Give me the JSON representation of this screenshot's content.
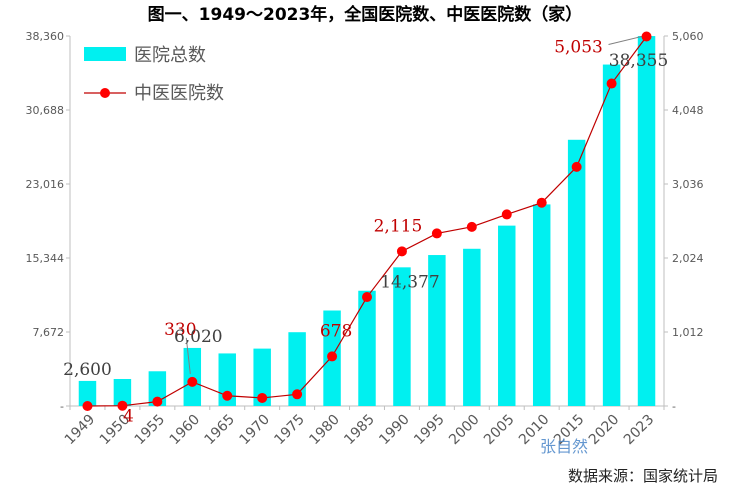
{
  "title": "图一、1949～2023年，全国医院数、中医医院数（家）",
  "source": "数据来源：国家统计局",
  "watermark": "张自然",
  "colors": {
    "bar": "#00f0f0",
    "line": "#c00000",
    "marker": "#ff0000",
    "axis": "#bfbfbf"
  },
  "chart_data": {
    "type": "bar",
    "categories": [
      "1949",
      "1950",
      "1955",
      "1960",
      "1965",
      "1970",
      "1975",
      "1980",
      "1985",
      "1990",
      "1995",
      "2000",
      "2005",
      "2010",
      "2015",
      "2020",
      "2023"
    ],
    "series": [
      {
        "name": "医院总数",
        "type": "bar",
        "axis": "left",
        "values": [
          2600,
          2800,
          3600,
          6020,
          5450,
          5950,
          7650,
          9900,
          11950,
          14377,
          15650,
          16300,
          18700,
          20900,
          27600,
          35400,
          38355
        ]
      },
      {
        "name": "中医医院数",
        "type": "line",
        "axis": "right",
        "values": [
          0,
          4,
          60,
          330,
          140,
          110,
          160,
          678,
          1490,
          2115,
          2360,
          2450,
          2620,
          2780,
          3270,
          4410,
          5053
        ]
      }
    ],
    "y_left": {
      "ylim": [
        0,
        38360
      ],
      "ticks": [
        0,
        7672,
        15344,
        23016,
        30688,
        38360
      ],
      "tick_labels": [
        "-",
        "7,672",
        "15,344",
        "23,016",
        "30,688",
        "38,360"
      ]
    },
    "y_right": {
      "ylim": [
        0,
        5060
      ],
      "ticks": [
        0,
        1012,
        2024,
        3036,
        4048,
        5060
      ],
      "tick_labels": [
        "-",
        "1,012",
        "2,024",
        "3,036",
        "4,048",
        "5,060"
      ]
    },
    "annotations": [
      {
        "text": "2,600",
        "color": "gray"
      },
      {
        "text": "4",
        "color": "red"
      },
      {
        "text": "330",
        "color": "red"
      },
      {
        "text": "6,020",
        "color": "gray"
      },
      {
        "text": "678",
        "color": "red"
      },
      {
        "text": "14,377",
        "color": "gray"
      },
      {
        "text": "2,115",
        "color": "red"
      },
      {
        "text": "5,053",
        "color": "red"
      },
      {
        "text": "38,355",
        "color": "gray"
      }
    ],
    "legend_position": "top-left",
    "grid": false
  }
}
